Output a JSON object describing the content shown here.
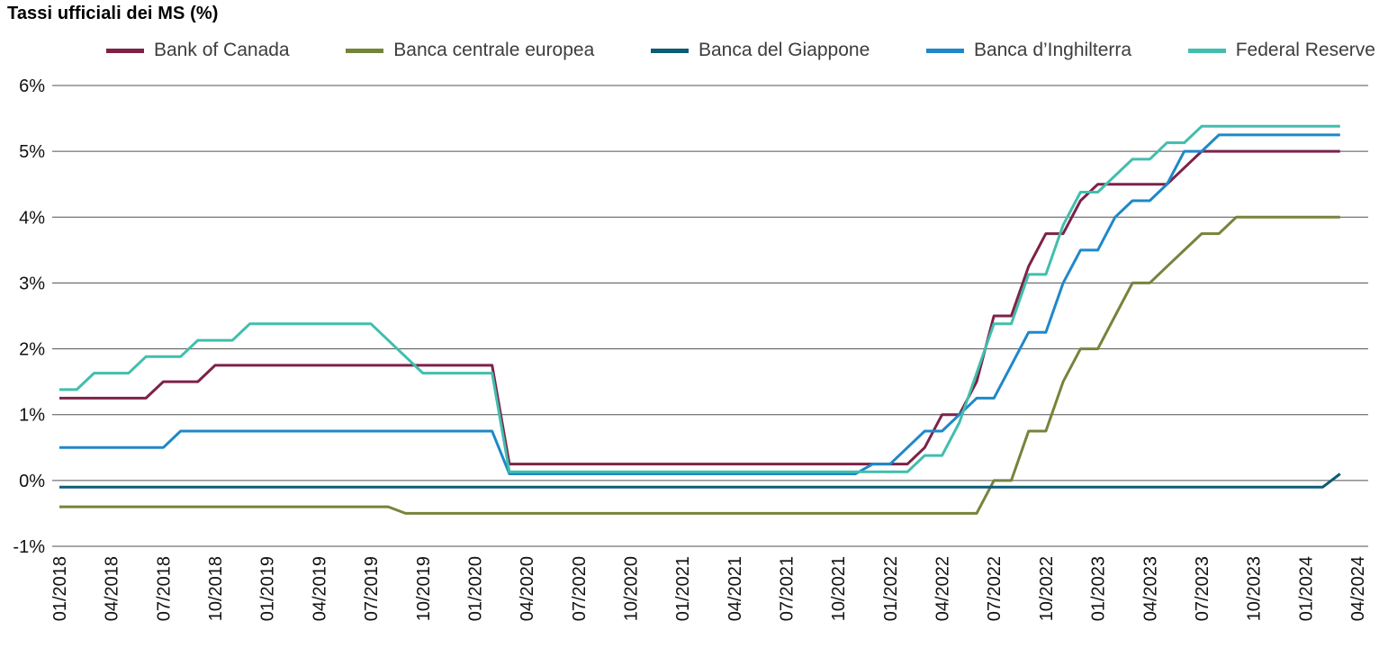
{
  "title": "Tassi ufficiali dei MS (%)",
  "chart_data": {
    "type": "line",
    "title": "Tassi ufficiali dei MS (%)",
    "x_frequency": "monthly",
    "x_start": "01/2018",
    "x_end": "03/2024",
    "x_axis_extends_to": "04/2024",
    "grid": "horizontal",
    "legend_position": "top",
    "ylim": [
      -1,
      6
    ],
    "y_axis_tick_labels": [
      "6%",
      "5%",
      "4%",
      "3%",
      "2%",
      "1%",
      "0%",
      "-1%"
    ],
    "x_axis_tick_labels": [
      "01/2018",
      "04/2018",
      "07/2018",
      "10/2018",
      "01/2019",
      "04/2019",
      "07/2019",
      "10/2019",
      "01/2020",
      "04/2020",
      "07/2020",
      "10/2020",
      "01/2021",
      "04/2021",
      "07/2021",
      "10/2021",
      "01/2022",
      "04/2022",
      "07/2022",
      "10/2022",
      "01/2023",
      "04/2023",
      "07/2023",
      "10/2023",
      "01/2024",
      "04/2024"
    ],
    "series": [
      {
        "name": "Bank of Canada",
        "color": "#7D2248",
        "values": [
          1.25,
          1.25,
          1.25,
          1.25,
          1.25,
          1.25,
          1.5,
          1.5,
          1.5,
          1.75,
          1.75,
          1.75,
          1.75,
          1.75,
          1.75,
          1.75,
          1.75,
          1.75,
          1.75,
          1.75,
          1.75,
          1.75,
          1.75,
          1.75,
          1.75,
          1.75,
          0.25,
          0.25,
          0.25,
          0.25,
          0.25,
          0.25,
          0.25,
          0.25,
          0.25,
          0.25,
          0.25,
          0.25,
          0.25,
          0.25,
          0.25,
          0.25,
          0.25,
          0.25,
          0.25,
          0.25,
          0.25,
          0.25,
          0.25,
          0.25,
          0.5,
          1,
          1,
          1.5,
          2.5,
          2.5,
          3.25,
          3.75,
          3.75,
          4.25,
          4.5,
          4.5,
          4.5,
          4.5,
          4.5,
          4.75,
          5,
          5,
          5,
          5,
          5,
          5,
          5,
          5,
          5
        ]
      },
      {
        "name": "Banca centrale europea",
        "color": "#75843B",
        "values": [
          -0.4,
          -0.4,
          -0.4,
          -0.4,
          -0.4,
          -0.4,
          -0.4,
          -0.4,
          -0.4,
          -0.4,
          -0.4,
          -0.4,
          -0.4,
          -0.4,
          -0.4,
          -0.4,
          -0.4,
          -0.4,
          -0.4,
          -0.4,
          -0.5,
          -0.5,
          -0.5,
          -0.5,
          -0.5,
          -0.5,
          -0.5,
          -0.5,
          -0.5,
          -0.5,
          -0.5,
          -0.5,
          -0.5,
          -0.5,
          -0.5,
          -0.5,
          -0.5,
          -0.5,
          -0.5,
          -0.5,
          -0.5,
          -0.5,
          -0.5,
          -0.5,
          -0.5,
          -0.5,
          -0.5,
          -0.5,
          -0.5,
          -0.5,
          -0.5,
          -0.5,
          -0.5,
          -0.5,
          0,
          0,
          0.75,
          0.75,
          1.5,
          2,
          2,
          2.5,
          3,
          3,
          3.25,
          3.5,
          3.75,
          3.75,
          4,
          4,
          4,
          4,
          4,
          4,
          4
        ]
      },
      {
        "name": "Banca del Giappone",
        "color": "#0F5B78",
        "values": [
          -0.1,
          -0.1,
          -0.1,
          -0.1,
          -0.1,
          -0.1,
          -0.1,
          -0.1,
          -0.1,
          -0.1,
          -0.1,
          -0.1,
          -0.1,
          -0.1,
          -0.1,
          -0.1,
          -0.1,
          -0.1,
          -0.1,
          -0.1,
          -0.1,
          -0.1,
          -0.1,
          -0.1,
          -0.1,
          -0.1,
          -0.1,
          -0.1,
          -0.1,
          -0.1,
          -0.1,
          -0.1,
          -0.1,
          -0.1,
          -0.1,
          -0.1,
          -0.1,
          -0.1,
          -0.1,
          -0.1,
          -0.1,
          -0.1,
          -0.1,
          -0.1,
          -0.1,
          -0.1,
          -0.1,
          -0.1,
          -0.1,
          -0.1,
          -0.1,
          -0.1,
          -0.1,
          -0.1,
          -0.1,
          -0.1,
          -0.1,
          -0.1,
          -0.1,
          -0.1,
          -0.1,
          -0.1,
          -0.1,
          -0.1,
          -0.1,
          -0.1,
          -0.1,
          -0.1,
          -0.1,
          -0.1,
          -0.1,
          -0.1,
          -0.1,
          -0.1,
          0.1
        ]
      },
      {
        "name": "Banca d’Inghilterra",
        "color": "#1E88C9",
        "values": [
          0.5,
          0.5,
          0.5,
          0.5,
          0.5,
          0.5,
          0.5,
          0.75,
          0.75,
          0.75,
          0.75,
          0.75,
          0.75,
          0.75,
          0.75,
          0.75,
          0.75,
          0.75,
          0.75,
          0.75,
          0.75,
          0.75,
          0.75,
          0.75,
          0.75,
          0.75,
          0.1,
          0.1,
          0.1,
          0.1,
          0.1,
          0.1,
          0.1,
          0.1,
          0.1,
          0.1,
          0.1,
          0.1,
          0.1,
          0.1,
          0.1,
          0.1,
          0.1,
          0.1,
          0.1,
          0.1,
          0.1,
          0.25,
          0.25,
          0.5,
          0.75,
          0.75,
          1,
          1.25,
          1.25,
          1.75,
          2.25,
          2.25,
          3,
          3.5,
          3.5,
          4,
          4.25,
          4.25,
          4.5,
          5,
          5,
          5.25,
          5.25,
          5.25,
          5.25,
          5.25,
          5.25,
          5.25,
          5.25
        ]
      },
      {
        "name": "Federal Reserve",
        "color": "#41BEAD",
        "values": [
          1.38,
          1.38,
          1.63,
          1.63,
          1.63,
          1.88,
          1.88,
          1.88,
          2.13,
          2.13,
          2.13,
          2.38,
          2.38,
          2.38,
          2.38,
          2.38,
          2.38,
          2.38,
          2.38,
          2.13,
          1.88,
          1.63,
          1.63,
          1.63,
          1.63,
          1.63,
          0.13,
          0.13,
          0.13,
          0.13,
          0.13,
          0.13,
          0.13,
          0.13,
          0.13,
          0.13,
          0.13,
          0.13,
          0.13,
          0.13,
          0.13,
          0.13,
          0.13,
          0.13,
          0.13,
          0.13,
          0.13,
          0.13,
          0.13,
          0.13,
          0.38,
          0.38,
          0.88,
          1.63,
          2.38,
          2.38,
          3.13,
          3.13,
          3.88,
          4.38,
          4.38,
          4.63,
          4.88,
          4.88,
          5.13,
          5.13,
          5.38,
          5.38,
          5.38,
          5.38,
          5.38,
          5.38,
          5.38,
          5.38,
          5.38
        ]
      }
    ]
  }
}
